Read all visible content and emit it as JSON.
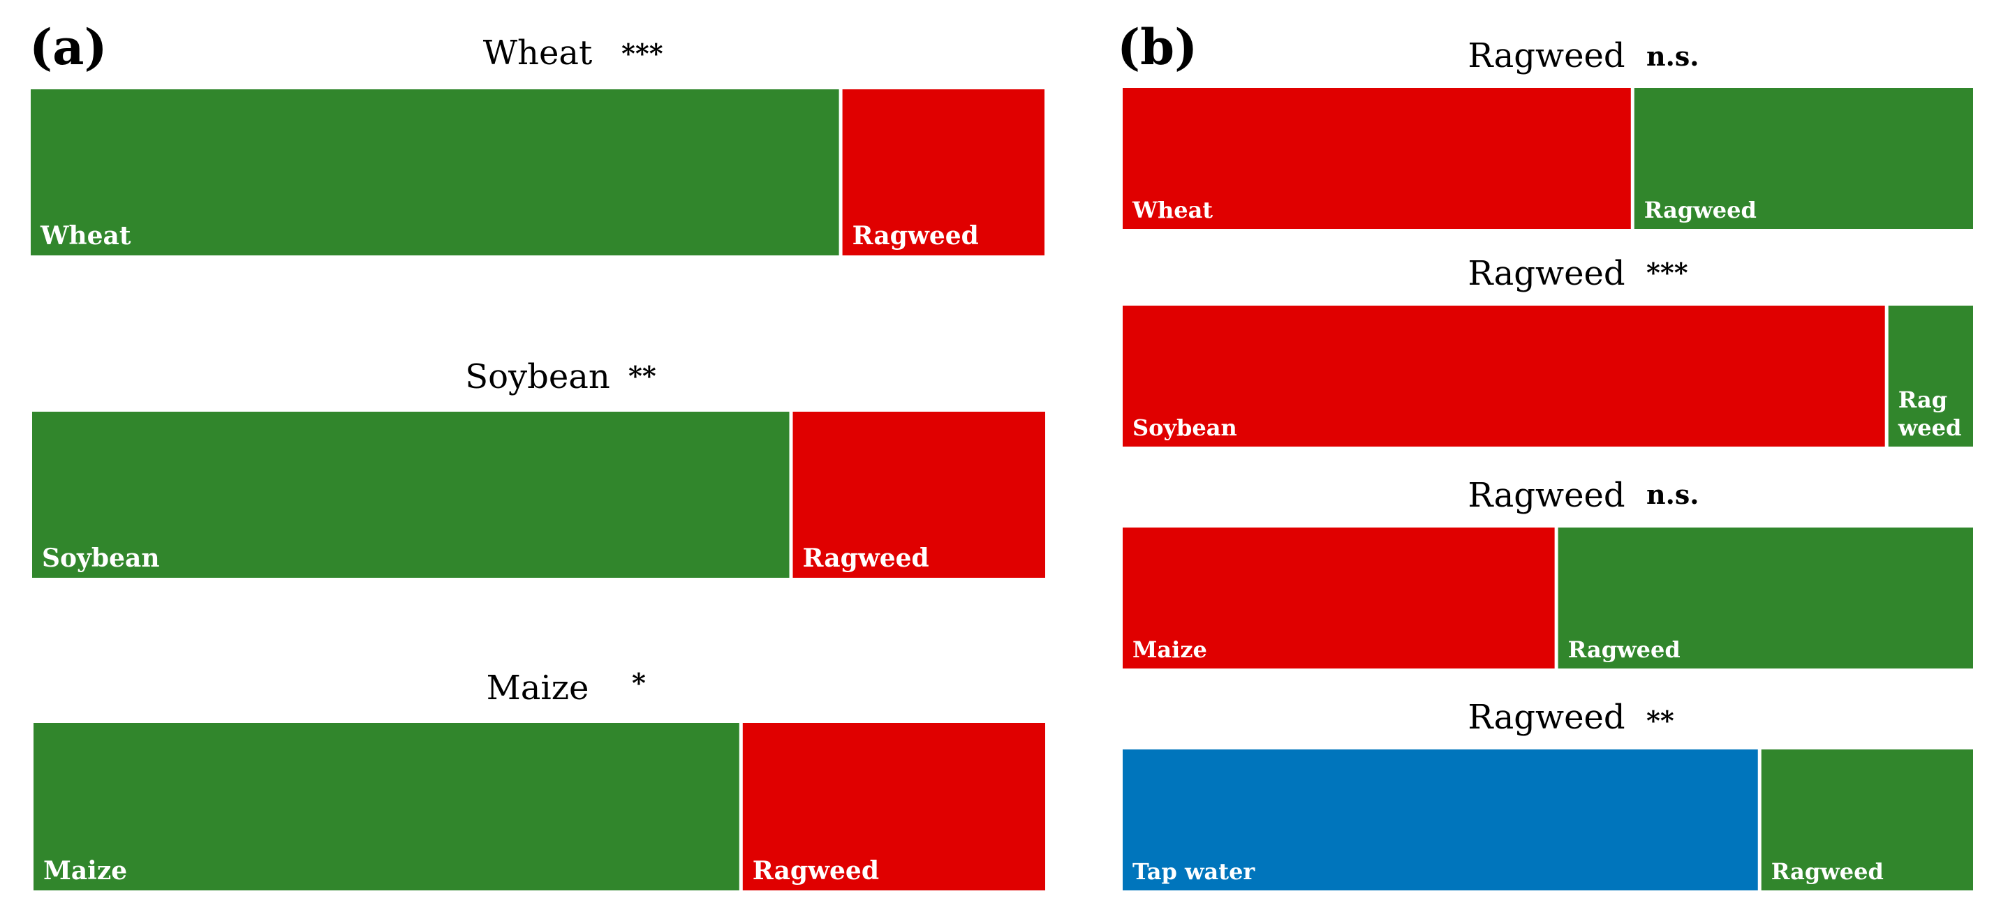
{
  "colors": {
    "green": "#31862c",
    "red": "#e00000",
    "blue": "#0075bc",
    "background": "#ffffff"
  },
  "panels": [
    {
      "letter": "(a)"
    },
    {
      "letter": "(b)"
    }
  ],
  "chart_data": [
    {
      "type": "bar",
      "panel": "(a)",
      "stacked": true,
      "orientation": "horizontal",
      "title": "Wheat",
      "significance": "***",
      "segments": [
        {
          "label": "Wheat",
          "value": 0.8,
          "color": "#31862c"
        },
        {
          "label": "Ragweed",
          "value": 0.2,
          "color": "#e00000"
        }
      ]
    },
    {
      "type": "bar",
      "panel": "(a)",
      "stacked": true,
      "orientation": "horizontal",
      "title": "Soybean",
      "significance": "**",
      "segments": [
        {
          "label": "Soybean",
          "value": 0.75,
          "color": "#31862c"
        },
        {
          "label": "Ragweed",
          "value": 0.25,
          "color": "#e00000"
        }
      ]
    },
    {
      "type": "bar",
      "panel": "(a)",
      "stacked": true,
      "orientation": "horizontal",
      "title": "Maize",
      "significance": "*",
      "segments": [
        {
          "label": "Maize",
          "value": 0.7,
          "color": "#31862c"
        },
        {
          "label": "Ragweed",
          "value": 0.3,
          "color": "#e00000"
        }
      ]
    },
    {
      "type": "bar",
      "panel": "(b)",
      "stacked": true,
      "orientation": "horizontal",
      "title": "Ragweed",
      "significance": "n.s.",
      "segments": [
        {
          "label": "Wheat",
          "value": 0.6,
          "color": "#e00000"
        },
        {
          "label": "Ragweed",
          "value": 0.4,
          "color": "#31862c"
        }
      ]
    },
    {
      "type": "bar",
      "panel": "(b)",
      "stacked": true,
      "orientation": "horizontal",
      "title": "Ragweed",
      "significance": "***",
      "segments": [
        {
          "label": "Soybean",
          "value": 0.9,
          "color": "#e00000"
        },
        {
          "label": "Rag weed",
          "value": 0.1,
          "color": "#31862c"
        }
      ]
    },
    {
      "type": "bar",
      "panel": "(b)",
      "stacked": true,
      "orientation": "horizontal",
      "title": "Ragweed",
      "significance": "n.s.",
      "segments": [
        {
          "label": "Maize",
          "value": 0.51,
          "color": "#e00000"
        },
        {
          "label": "Ragweed",
          "value": 0.49,
          "color": "#31862c"
        }
      ]
    },
    {
      "type": "bar",
      "panel": "(b)",
      "stacked": true,
      "orientation": "horizontal",
      "title": "Ragweed",
      "significance": "**",
      "segments": [
        {
          "label": "Tap water",
          "value": 0.75,
          "color": "#0075bc"
        },
        {
          "label": "Ragweed",
          "value": 0.25,
          "color": "#31862c"
        }
      ]
    }
  ]
}
